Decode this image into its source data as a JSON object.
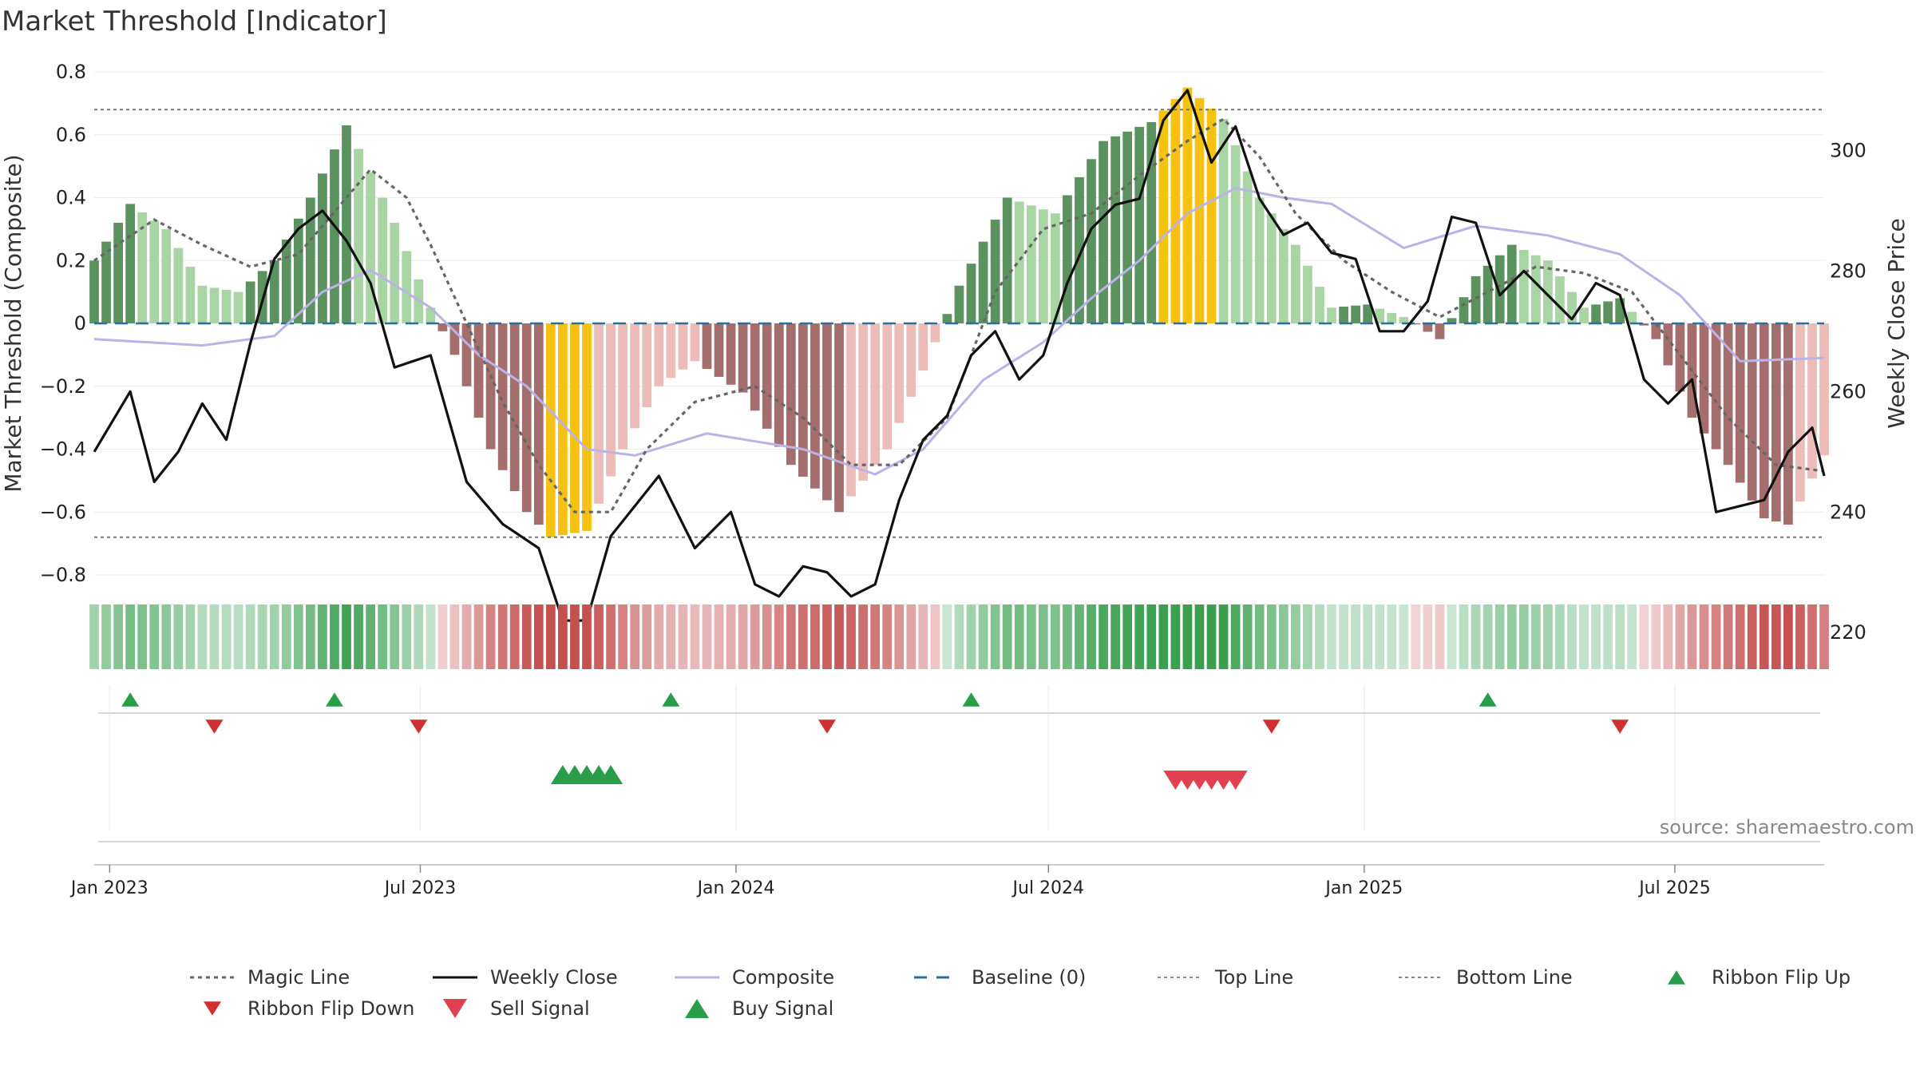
{
  "chart_data": {
    "type": "bar",
    "title": "Market Threshold [Indicator]",
    "ylabel_left": "Market Threshold (Composite)",
    "ylabel_right": "Weekly Close Price",
    "ylim_left": [
      -0.8,
      0.8
    ],
    "ylim_right": [
      220,
      300
    ],
    "yticks_left": [
      "0.8",
      "0.6",
      "0.4",
      "0.2",
      "0",
      "−0.2",
      "−0.4",
      "−0.6",
      "−0.8"
    ],
    "yticks_left_values": [
      0.8,
      0.6,
      0.4,
      0.2,
      0,
      -0.2,
      -0.4,
      -0.6,
      -0.8
    ],
    "yticks_right": [
      "300",
      "280",
      "260",
      "240",
      "220"
    ],
    "yticks_right_values": [
      300,
      280,
      260,
      240,
      220
    ],
    "x_start": "2022-12-23",
    "x_end": "2025-09-26",
    "xticks": [
      {
        "date": "2023-01-01",
        "label": "Jan 2023"
      },
      {
        "date": "2023-07-01",
        "label": "Jul 2023"
      },
      {
        "date": "2024-01-01",
        "label": "Jan 2024"
      },
      {
        "date": "2024-07-01",
        "label": "Jul 2024"
      },
      {
        "date": "2025-01-01",
        "label": "Jan 2025"
      },
      {
        "date": "2025-07-01",
        "label": "Jul 2025"
      }
    ],
    "top_line": 0.68,
    "bottom_line": -0.68,
    "bar_key": [
      {
        "date": "2022-12-23",
        "c": 0.2
      },
      {
        "date": "2023-01-13",
        "c": 0.38
      },
      {
        "date": "2023-02-03",
        "c": 0.3
      },
      {
        "date": "2023-02-24",
        "c": 0.12
      },
      {
        "date": "2023-03-17",
        "c": 0.1
      },
      {
        "date": "2023-04-07",
        "c": 0.2
      },
      {
        "date": "2023-04-28",
        "c": 0.4
      },
      {
        "date": "2023-05-19",
        "c": 0.63
      },
      {
        "date": "2023-06-02",
        "c": 0.48
      },
      {
        "date": "2023-06-16",
        "c": 0.32
      },
      {
        "date": "2023-07-07",
        "c": 0.05
      },
      {
        "date": "2023-07-21",
        "c": -0.1
      },
      {
        "date": "2023-08-11",
        "c": -0.4
      },
      {
        "date": "2023-09-01",
        "c": -0.6
      },
      {
        "date": "2023-09-15",
        "c": -0.68
      },
      {
        "date": "2023-10-06",
        "c": -0.66
      },
      {
        "date": "2023-10-27",
        "c": -0.4
      },
      {
        "date": "2023-11-17",
        "c": -0.2
      },
      {
        "date": "2023-12-08",
        "c": -0.12
      },
      {
        "date": "2024-01-05",
        "c": -0.22
      },
      {
        "date": "2024-02-02",
        "c": -0.45
      },
      {
        "date": "2024-03-01",
        "c": -0.6
      },
      {
        "date": "2024-03-29",
        "c": -0.4
      },
      {
        "date": "2024-04-19",
        "c": -0.15
      },
      {
        "date": "2024-05-10",
        "c": 0.12
      },
      {
        "date": "2024-06-07",
        "c": 0.4
      },
      {
        "date": "2024-07-05",
        "c": 0.35
      },
      {
        "date": "2024-08-02",
        "c": 0.58
      },
      {
        "date": "2024-08-30",
        "c": 0.64
      },
      {
        "date": "2024-09-20",
        "c": 0.75
      },
      {
        "date": "2024-10-11",
        "c": 0.65
      },
      {
        "date": "2024-11-01",
        "c": 0.4
      },
      {
        "date": "2024-11-22",
        "c": 0.25
      },
      {
        "date": "2024-12-13",
        "c": 0.05
      },
      {
        "date": "2025-01-03",
        "c": 0.06
      },
      {
        "date": "2025-01-24",
        "c": 0.02
      },
      {
        "date": "2025-02-14",
        "c": -0.05
      },
      {
        "date": "2025-03-07",
        "c": 0.15
      },
      {
        "date": "2025-03-28",
        "c": 0.25
      },
      {
        "date": "2025-04-18",
        "c": 0.2
      },
      {
        "date": "2025-05-09",
        "c": 0.05
      },
      {
        "date": "2025-05-30",
        "c": 0.08
      },
      {
        "date": "2025-06-20",
        "c": -0.05
      },
      {
        "date": "2025-07-11",
        "c": -0.3
      },
      {
        "date": "2025-08-01",
        "c": -0.45
      },
      {
        "date": "2025-08-22",
        "c": -0.62
      },
      {
        "date": "2025-09-05",
        "c": -0.64
      },
      {
        "date": "2025-09-26",
        "c": -0.42
      }
    ],
    "series": [
      {
        "name": "Weekly Close",
        "axis": "right",
        "points": [
          {
            "date": "2022-12-23",
            "v": 250
          },
          {
            "date": "2023-01-13",
            "v": 260
          },
          {
            "date": "2023-01-27",
            "v": 245
          },
          {
            "date": "2023-02-10",
            "v": 250
          },
          {
            "date": "2023-02-24",
            "v": 258
          },
          {
            "date": "2023-03-10",
            "v": 252
          },
          {
            "date": "2023-03-24",
            "v": 268
          },
          {
            "date": "2023-04-07",
            "v": 282
          },
          {
            "date": "2023-04-21",
            "v": 287
          },
          {
            "date": "2023-05-05",
            "v": 290
          },
          {
            "date": "2023-05-19",
            "v": 285
          },
          {
            "date": "2023-06-02",
            "v": 278
          },
          {
            "date": "2023-06-16",
            "v": 264
          },
          {
            "date": "2023-07-07",
            "v": 266
          },
          {
            "date": "2023-07-28",
            "v": 245
          },
          {
            "date": "2023-08-18",
            "v": 238
          },
          {
            "date": "2023-09-08",
            "v": 234
          },
          {
            "date": "2023-09-22",
            "v": 222
          },
          {
            "date": "2023-10-06",
            "v": 222
          },
          {
            "date": "2023-10-20",
            "v": 236
          },
          {
            "date": "2023-11-03",
            "v": 241
          },
          {
            "date": "2023-11-17",
            "v": 246
          },
          {
            "date": "2023-12-08",
            "v": 234
          },
          {
            "date": "2023-12-29",
            "v": 240
          },
          {
            "date": "2024-01-12",
            "v": 228
          },
          {
            "date": "2024-01-26",
            "v": 226
          },
          {
            "date": "2024-02-09",
            "v": 231
          },
          {
            "date": "2024-02-23",
            "v": 230
          },
          {
            "date": "2024-03-08",
            "v": 226
          },
          {
            "date": "2024-03-22",
            "v": 228
          },
          {
            "date": "2024-04-05",
            "v": 242
          },
          {
            "date": "2024-04-19",
            "v": 252
          },
          {
            "date": "2024-05-03",
            "v": 256
          },
          {
            "date": "2024-05-17",
            "v": 266
          },
          {
            "date": "2024-05-31",
            "v": 270
          },
          {
            "date": "2024-06-14",
            "v": 262
          },
          {
            "date": "2024-06-28",
            "v": 266
          },
          {
            "date": "2024-07-12",
            "v": 278
          },
          {
            "date": "2024-07-26",
            "v": 287
          },
          {
            "date": "2024-08-09",
            "v": 291
          },
          {
            "date": "2024-08-23",
            "v": 292
          },
          {
            "date": "2024-09-06",
            "v": 305
          },
          {
            "date": "2024-09-20",
            "v": 310
          },
          {
            "date": "2024-10-04",
            "v": 298
          },
          {
            "date": "2024-10-18",
            "v": 304
          },
          {
            "date": "2024-11-01",
            "v": 292
          },
          {
            "date": "2024-11-15",
            "v": 286
          },
          {
            "date": "2024-11-29",
            "v": 288
          },
          {
            "date": "2024-12-13",
            "v": 283
          },
          {
            "date": "2024-12-27",
            "v": 282
          },
          {
            "date": "2025-01-10",
            "v": 270
          },
          {
            "date": "2025-01-24",
            "v": 270
          },
          {
            "date": "2025-02-07",
            "v": 275
          },
          {
            "date": "2025-02-21",
            "v": 289
          },
          {
            "date": "2025-03-07",
            "v": 288
          },
          {
            "date": "2025-03-21",
            "v": 276
          },
          {
            "date": "2025-04-04",
            "v": 280
          },
          {
            "date": "2025-04-18",
            "v": 276
          },
          {
            "date": "2025-05-02",
            "v": 272
          },
          {
            "date": "2025-05-16",
            "v": 278
          },
          {
            "date": "2025-05-30",
            "v": 276
          },
          {
            "date": "2025-06-13",
            "v": 262
          },
          {
            "date": "2025-06-27",
            "v": 258
          },
          {
            "date": "2025-07-11",
            "v": 262
          },
          {
            "date": "2025-07-25",
            "v": 240
          },
          {
            "date": "2025-08-08",
            "v": 241
          },
          {
            "date": "2025-08-22",
            "v": 242
          },
          {
            "date": "2025-09-05",
            "v": 250
          },
          {
            "date": "2025-09-19",
            "v": 254
          },
          {
            "date": "2025-09-26",
            "v": 246
          }
        ]
      },
      {
        "name": "Magic Line",
        "axis": "left",
        "points": [
          {
            "date": "2022-12-23",
            "v": 0.2
          },
          {
            "date": "2023-01-27",
            "v": 0.33
          },
          {
            "date": "2023-02-24",
            "v": 0.25
          },
          {
            "date": "2023-03-24",
            "v": 0.18
          },
          {
            "date": "2023-04-21",
            "v": 0.22
          },
          {
            "date": "2023-05-19",
            "v": 0.4
          },
          {
            "date": "2023-06-02",
            "v": 0.49
          },
          {
            "date": "2023-06-23",
            "v": 0.4
          },
          {
            "date": "2023-07-07",
            "v": 0.25
          },
          {
            "date": "2023-07-28",
            "v": 0.0
          },
          {
            "date": "2023-08-18",
            "v": -0.25
          },
          {
            "date": "2023-09-08",
            "v": -0.45
          },
          {
            "date": "2023-09-29",
            "v": -0.6
          },
          {
            "date": "2023-10-20",
            "v": -0.6
          },
          {
            "date": "2023-11-10",
            "v": -0.4
          },
          {
            "date": "2023-12-08",
            "v": -0.25
          },
          {
            "date": "2024-01-12",
            "v": -0.2
          },
          {
            "date": "2024-02-09",
            "v": -0.3
          },
          {
            "date": "2024-03-08",
            "v": -0.45
          },
          {
            "date": "2024-04-05",
            "v": -0.45
          },
          {
            "date": "2024-05-03",
            "v": -0.3
          },
          {
            "date": "2024-05-31",
            "v": 0.1
          },
          {
            "date": "2024-06-28",
            "v": 0.3
          },
          {
            "date": "2024-07-26",
            "v": 0.35
          },
          {
            "date": "2024-08-23",
            "v": 0.47
          },
          {
            "date": "2024-09-20",
            "v": 0.58
          },
          {
            "date": "2024-10-11",
            "v": 0.65
          },
          {
            "date": "2024-11-01",
            "v": 0.53
          },
          {
            "date": "2024-11-22",
            "v": 0.35
          },
          {
            "date": "2024-12-20",
            "v": 0.2
          },
          {
            "date": "2025-01-17",
            "v": 0.1
          },
          {
            "date": "2025-02-14",
            "v": 0.02
          },
          {
            "date": "2025-03-14",
            "v": 0.1
          },
          {
            "date": "2025-04-11",
            "v": 0.18
          },
          {
            "date": "2025-05-09",
            "v": 0.16
          },
          {
            "date": "2025-06-06",
            "v": 0.1
          },
          {
            "date": "2025-07-04",
            "v": -0.1
          },
          {
            "date": "2025-08-01",
            "v": -0.3
          },
          {
            "date": "2025-08-29",
            "v": -0.45
          },
          {
            "date": "2025-09-26",
            "v": -0.47
          }
        ]
      },
      {
        "name": "Composite",
        "axis": "left",
        "points": [
          {
            "date": "2022-12-23",
            "v": -0.05
          },
          {
            "date": "2023-02-24",
            "v": -0.07
          },
          {
            "date": "2023-04-07",
            "v": -0.04
          },
          {
            "date": "2023-05-05",
            "v": 0.1
          },
          {
            "date": "2023-06-02",
            "v": 0.17
          },
          {
            "date": "2023-07-07",
            "v": 0.05
          },
          {
            "date": "2023-08-04",
            "v": -0.1
          },
          {
            "date": "2023-09-01",
            "v": -0.2
          },
          {
            "date": "2023-10-06",
            "v": -0.4
          },
          {
            "date": "2023-11-03",
            "v": -0.42
          },
          {
            "date": "2023-12-15",
            "v": -0.35
          },
          {
            "date": "2024-02-09",
            "v": -0.4
          },
          {
            "date": "2024-03-22",
            "v": -0.48
          },
          {
            "date": "2024-04-19",
            "v": -0.4
          },
          {
            "date": "2024-05-24",
            "v": -0.18
          },
          {
            "date": "2024-06-28",
            "v": -0.06
          },
          {
            "date": "2024-07-26",
            "v": 0.08
          },
          {
            "date": "2024-08-23",
            "v": 0.2
          },
          {
            "date": "2024-09-20",
            "v": 0.35
          },
          {
            "date": "2024-10-18",
            "v": 0.43
          },
          {
            "date": "2024-11-15",
            "v": 0.4
          },
          {
            "date": "2024-12-13",
            "v": 0.38
          },
          {
            "date": "2025-01-24",
            "v": 0.24
          },
          {
            "date": "2025-03-07",
            "v": 0.31
          },
          {
            "date": "2025-04-18",
            "v": 0.28
          },
          {
            "date": "2025-05-30",
            "v": 0.22
          },
          {
            "date": "2025-07-04",
            "v": 0.09
          },
          {
            "date": "2025-08-08",
            "v": -0.12
          },
          {
            "date": "2025-09-26",
            "v": -0.11
          }
        ]
      },
      {
        "name": "Baseline (0)",
        "axis": "left",
        "value": 0
      },
      {
        "name": "Top Line",
        "axis": "left",
        "value": 0.68
      },
      {
        "name": "Bottom Line",
        "axis": "left",
        "value": -0.68
      }
    ],
    "ribbon_flip_up": [
      "2023-01-13",
      "2023-05-12",
      "2023-11-24",
      "2024-05-17",
      "2025-03-14"
    ],
    "ribbon_flip_down": [
      "2023-03-03",
      "2023-06-30",
      "2024-02-23",
      "2024-11-08",
      "2025-05-30"
    ],
    "buy_signals": [
      "2023-09-22",
      "2023-09-29",
      "2023-10-06",
      "2023-10-13",
      "2023-10-20"
    ],
    "sell_signals": [
      "2024-09-13",
      "2024-09-20",
      "2024-09-27",
      "2024-10-04",
      "2024-10-11",
      "2024-10-18"
    ],
    "legend": {
      "position": "bottom",
      "items": [
        {
          "label": "Magic Line",
          "kind": "dotted",
          "color": "#666666"
        },
        {
          "label": "Weekly Close",
          "kind": "solid",
          "color": "#111111"
        },
        {
          "label": "Composite",
          "kind": "solid",
          "color": "#b9b3e6"
        },
        {
          "label": "Baseline (0)",
          "kind": "dashed",
          "color": "#2a6f97"
        },
        {
          "label": "Top Line",
          "kind": "dotted-thin",
          "color": "#888888"
        },
        {
          "label": "Bottom Line",
          "kind": "dotted-thin",
          "color": "#888888"
        },
        {
          "label": "Ribbon Flip Up",
          "kind": "tri-up",
          "color": "#2a9d4a"
        },
        {
          "label": "Ribbon Flip Down",
          "kind": "tri-down",
          "color": "#d03030"
        },
        {
          "label": "Sell Signal",
          "kind": "tri-down-big",
          "color": "#e04050"
        },
        {
          "label": "Buy Signal",
          "kind": "tri-up-big",
          "color": "#2a9d4a"
        }
      ]
    },
    "colors": {
      "pos_dark": "#5c9160",
      "pos_light": "#a9d4a3",
      "neg_dark": "#a36e6c",
      "neg_light": "#ecbdb8",
      "extreme": "#f5c211"
    },
    "grid": true,
    "source": "source: sharemaestro.com"
  }
}
